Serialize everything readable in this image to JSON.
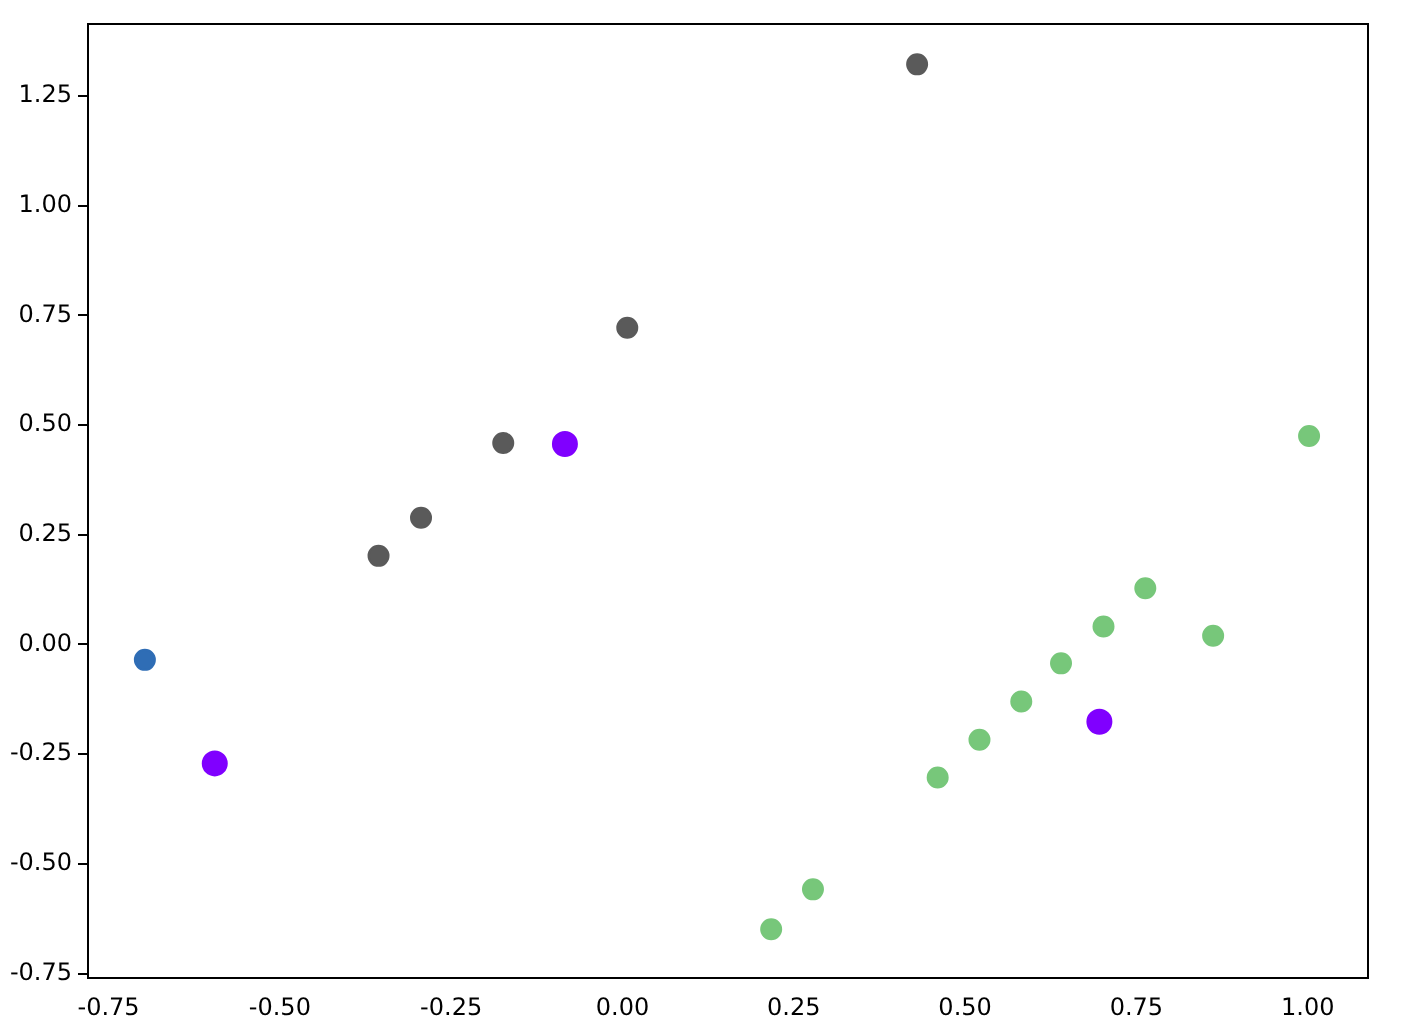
{
  "chart_data": {
    "type": "scatter",
    "grid": false,
    "legend": false,
    "marker": "circle",
    "xlim": [
      -0.78,
      1.088
    ],
    "ylim": [
      -0.76,
      1.414
    ],
    "xticks": [
      {
        "value": -0.75,
        "label": "-0.75"
      },
      {
        "value": -0.5,
        "label": "-0.50"
      },
      {
        "value": -0.25,
        "label": "-0.25"
      },
      {
        "value": 0,
        "label": "0.00"
      },
      {
        "value": 0.25,
        "label": "0.25"
      },
      {
        "value": 0.5,
        "label": "0.50"
      },
      {
        "value": 0.75,
        "label": "0.75"
      },
      {
        "value": 1,
        "label": "1.00"
      }
    ],
    "yticks": [
      {
        "value": -0.75,
        "label": "-0.75"
      },
      {
        "value": -0.5,
        "label": "-0.50"
      },
      {
        "value": -0.25,
        "label": "-0.25"
      },
      {
        "value": 0,
        "label": "0.00"
      },
      {
        "value": 0.25,
        "label": "0.25"
      },
      {
        "value": 0.5,
        "label": "0.50"
      },
      {
        "value": 0.75,
        "label": "0.75"
      },
      {
        "value": 1,
        "label": "1.00"
      },
      {
        "value": 1.25,
        "label": "1.25"
      }
    ],
    "series": [
      {
        "color": "#5a5a5a",
        "x": [
          -0.356,
          -0.294,
          -0.174,
          0.007,
          0.43
        ],
        "values": [
          0.202,
          0.289,
          0.459,
          0.722,
          1.322
        ]
      },
      {
        "color": "#2f6db5",
        "x": [
          -0.697
        ],
        "values": [
          -0.035
        ]
      },
      {
        "color": "#77c77a",
        "x": [
          0.217,
          0.278,
          0.46,
          0.521,
          0.582,
          0.64,
          0.702,
          0.763,
          0.862,
          1.002
        ],
        "values": [
          -0.649,
          -0.558,
          -0.303,
          -0.217,
          -0.13,
          -0.043,
          0.041,
          0.128,
          0.02,
          0.475
        ]
      },
      {
        "color": "#8000ff",
        "x": [
          -0.595,
          -0.084,
          0.696
        ],
        "values": [
          -0.271,
          0.457,
          -0.176
        ]
      }
    ]
  }
}
